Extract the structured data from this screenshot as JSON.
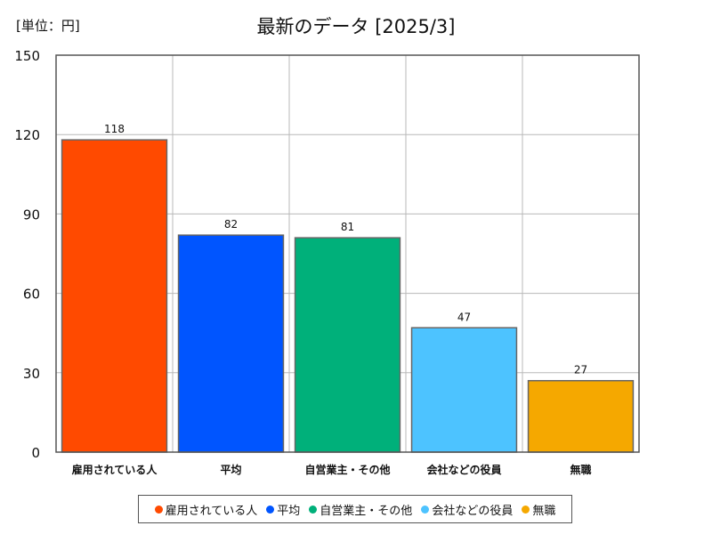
{
  "unit_label": "[単位：円]",
  "title": "最新のデータ [2025/3]",
  "chart_data": {
    "type": "bar",
    "categories": [
      "雇用されている人",
      "平均",
      "自営業主・その他",
      "会社などの役員",
      "無職"
    ],
    "values": [
      118,
      82,
      81,
      47,
      27
    ],
    "colors": [
      "#ff4a00",
      "#0055ff",
      "#00b07a",
      "#4dc3ff",
      "#f5a800"
    ],
    "ylim": [
      0,
      150
    ],
    "yticks": [
      0,
      30,
      60,
      90,
      120,
      150
    ],
    "grid": true,
    "legend": "bottom"
  }
}
